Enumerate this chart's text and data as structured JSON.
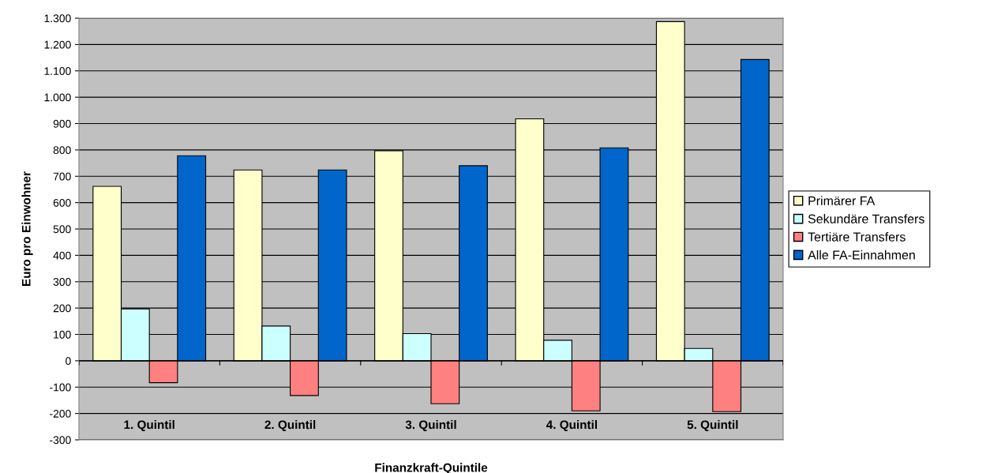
{
  "chart_data": {
    "type": "bar",
    "xlabel": "Finanzkraft-Quintile",
    "ylabel": "Euro pro Einwohner",
    "categories": [
      "1. Quintil",
      "2. Quintil",
      "3. Quintil",
      "4. Quintil",
      "5. Quintil"
    ],
    "series": [
      {
        "name": "Primärer FA",
        "color": "#ffffcc",
        "values": [
          662,
          724,
          797,
          918,
          1287
        ]
      },
      {
        "name": "Sekundäre Transfers",
        "color": "#ccffff",
        "values": [
          197,
          132,
          103,
          78,
          47
        ]
      },
      {
        "name": "Tertiäre Transfers",
        "color": "#ff8080",
        "values": [
          -83,
          -132,
          -163,
          -190,
          -193
        ]
      },
      {
        "name": "Alle FA-Einnahmen",
        "color": "#0066cc",
        "values": [
          778,
          724,
          740,
          808,
          1143
        ]
      }
    ],
    "ylim": [
      -300,
      1300
    ],
    "yticks": [
      -300,
      -200,
      -100,
      0,
      100,
      200,
      300,
      400,
      500,
      600,
      700,
      800,
      900,
      {
        "value": 1000,
        "label": "1.000"
      },
      {
        "value": 1100,
        "label": "1.100"
      },
      {
        "value": 1200,
        "label": "1.200"
      },
      {
        "value": 1300,
        "label": "1.300"
      }
    ],
    "grid": "y",
    "legend": "right"
  }
}
